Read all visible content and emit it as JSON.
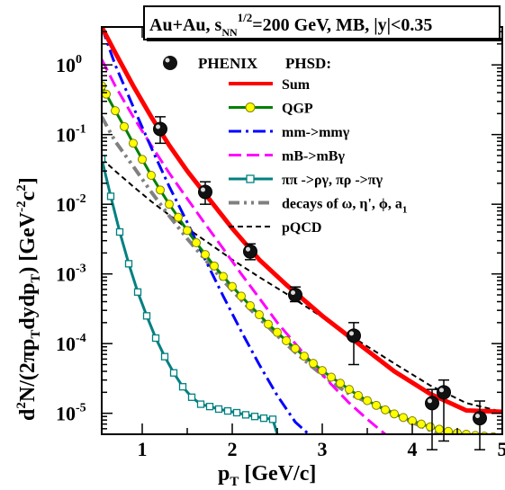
{
  "chart_data": {
    "type": "line",
    "title": "Au+Au, s_NN^1/2=200 GeV, MB, |y|<0.35",
    "title_parts": {
      "pre": "Au+Au, s",
      "sub1": "NN",
      "sup1": "1/2",
      "post": "=200 GeV, MB, |y|<0.35"
    },
    "xlabel": "p_T [GeV/c]",
    "xlabel_parts": {
      "main": "p",
      "sub": "T",
      "rest": " [GeV/c]"
    },
    "ylabel": "d^2N/(2πp_Tdydp_T) [GeV^-2 c^2]",
    "ylabel_parts": [
      {
        "t": "d",
        "k": "n"
      },
      {
        "t": "2",
        "k": "sup"
      },
      {
        "t": "N/(2πp",
        "k": "n"
      },
      {
        "t": "T",
        "k": "sub"
      },
      {
        "t": "dydp",
        "k": "n"
      },
      {
        "t": "T",
        "k": "sub"
      },
      {
        "t": ")  [GeV",
        "k": "n"
      },
      {
        "t": "-2",
        "k": "sup"
      },
      {
        "t": "c",
        "k": "n"
      },
      {
        "t": "2",
        "k": "sup"
      },
      {
        "t": "]",
        "k": "n"
      }
    ],
    "xlim": [
      0.55,
      5.0
    ],
    "ylim": [
      5e-06,
      3.5
    ],
    "yscale": "log",
    "xticks": [
      1,
      2,
      3,
      4,
      5
    ],
    "yticks": [
      {
        "v": 1,
        "label": "10",
        "exp": "0"
      },
      {
        "v": 0.1,
        "label": "10",
        "exp": "-1"
      },
      {
        "v": 0.01,
        "label": "10",
        "exp": "-2"
      },
      {
        "v": 0.001,
        "label": "10",
        "exp": "-3"
      },
      {
        "v": 0.0001,
        "label": "10",
        "exp": "-4"
      },
      {
        "v": 1e-05,
        "label": "10",
        "exp": "-5"
      }
    ],
    "legend_header": "PHSD:",
    "legend_placement": "top-right",
    "data_points": {
      "name": "PHENIX",
      "points": [
        {
          "x": 1.2,
          "y": 0.12,
          "ylo": 0.075,
          "yhi": 0.18
        },
        {
          "x": 1.7,
          "y": 0.015,
          "ylo": 0.01,
          "yhi": 0.021
        },
        {
          "x": 2.2,
          "y": 0.0021,
          "ylo": 0.0016,
          "yhi": 0.0027
        },
        {
          "x": 2.7,
          "y": 0.0005,
          "ylo": 0.0004,
          "yhi": 0.00065
        },
        {
          "x": 3.35,
          "y": 0.00013,
          "ylo": 5e-05,
          "yhi": 0.0002
        },
        {
          "x": 4.22,
          "y": 1.4e-05,
          "ylo": 3e-06,
          "yhi": 2.2e-05
        },
        {
          "x": 4.35,
          "y": 2e-05,
          "ylo": 4e-06,
          "yhi": 3e-05
        },
        {
          "x": 4.75,
          "y": 8.5e-06,
          "ylo": 3e-06,
          "yhi": 1.5e-05
        }
      ]
    },
    "series": [
      {
        "name": "Sum",
        "color": "#ff0000",
        "dash": "solid",
        "width": 5,
        "x": [
          0.55,
          0.7,
          0.9,
          1.1,
          1.3,
          1.5,
          1.7,
          2.0,
          2.3,
          2.6,
          3.0,
          3.4,
          3.8,
          4.2,
          4.6,
          5.0
        ],
        "y": [
          3.5,
          1.5,
          0.5,
          0.18,
          0.07,
          0.03,
          0.014,
          0.0045,
          0.0016,
          0.0007,
          0.00025,
          0.0001,
          4e-05,
          1.9e-05,
          1.1e-05,
          1.05e-05
        ]
      },
      {
        "name": "QGP",
        "color": "#008000",
        "dash": "solid",
        "width": 3,
        "marker": "circle-yellow",
        "x": [
          0.55,
          0.6,
          0.7,
          0.8,
          0.9,
          1.0,
          1.1,
          1.2,
          1.3,
          1.4,
          1.5,
          1.6,
          1.7,
          1.8,
          1.9,
          2.0,
          2.1,
          2.2,
          2.3,
          2.4,
          2.5,
          2.6,
          2.7,
          2.8,
          2.9,
          3.0,
          3.1,
          3.2,
          3.3,
          3.4,
          3.5,
          3.6,
          3.7,
          3.8,
          3.9,
          4.0,
          4.1,
          4.2,
          4.3,
          4.4,
          4.5,
          4.6,
          4.7,
          4.8,
          4.9,
          5.0
        ],
        "y": [
          0.5,
          0.38,
          0.22,
          0.13,
          0.075,
          0.044,
          0.026,
          0.016,
          0.01,
          0.0065,
          0.0042,
          0.0028,
          0.0019,
          0.0013,
          0.00092,
          0.00066,
          0.00048,
          0.00035,
          0.00026,
          0.00019,
          0.000145,
          0.00011,
          8.5e-05,
          6.6e-05,
          5.2e-05,
          4.1e-05,
          3.3e-05,
          2.7e-05,
          2.2e-05,
          1.8e-05,
          1.52e-05,
          1.3e-05,
          1.12e-05,
          9.8e-06,
          8.7e-06,
          7.8e-06,
          7e-06,
          6.4e-06,
          5.9e-06,
          5.5e-06,
          5.2e-06,
          5e-06,
          4.8e-06,
          4.7e-06,
          4.6e-06,
          4.5e-06
        ]
      },
      {
        "name": "mm->mmγ",
        "color": "#0000ff",
        "dash": "dashdot",
        "width": 3,
        "x": [
          0.55,
          0.7,
          0.9,
          1.1,
          1.3,
          1.5,
          1.7,
          1.9,
          2.1,
          2.3,
          2.5,
          2.7,
          2.85
        ],
        "y": [
          3.5,
          1.0,
          0.25,
          0.065,
          0.018,
          0.0055,
          0.0016,
          0.00048,
          0.00015,
          5e-05,
          1.8e-05,
          7.5e-06,
          5e-06
        ]
      },
      {
        "name": "mB->mBγ",
        "color": "#ff00ff",
        "dash": "dash",
        "width": 3,
        "x": [
          0.55,
          0.7,
          0.9,
          1.1,
          1.3,
          1.5,
          1.7,
          1.9,
          2.1,
          2.3,
          2.5,
          2.7,
          2.9,
          3.1,
          3.3,
          3.5,
          3.7
        ],
        "y": [
          1.2,
          0.5,
          0.18,
          0.07,
          0.028,
          0.012,
          0.0052,
          0.0023,
          0.001,
          0.00045,
          0.0002,
          0.0001,
          5e-05,
          2.6e-05,
          1.4e-05,
          8.2e-06,
          5e-06
        ]
      },
      {
        "name": "ππ ->ργ, πρ ->πγ",
        "color": "#008080",
        "dash": "solid",
        "width": 3,
        "marker": "square-open",
        "x": [
          0.55,
          0.65,
          0.75,
          0.85,
          0.95,
          1.05,
          1.15,
          1.25,
          1.35,
          1.45,
          1.55,
          1.65,
          1.75,
          1.85,
          1.95,
          2.05,
          2.15,
          2.25,
          2.35,
          2.45,
          2.5
        ],
        "y": [
          0.045,
          0.013,
          0.004,
          0.0014,
          0.00055,
          0.00025,
          0.00012,
          6.5e-05,
          3.8e-05,
          2.4e-05,
          1.7e-05,
          1.35e-05,
          1.25e-05,
          1.15e-05,
          1.08e-05,
          1.02e-05,
          9.5e-06,
          9e-06,
          8.5e-06,
          8.2e-06,
          5e-06
        ]
      },
      {
        "name": "decays of ω, η', ϕ, a1",
        "color": "#808080",
        "dash": "dashdotdot",
        "width": 4,
        "x": [
          0.55,
          0.7,
          0.9,
          1.1,
          1.3,
          1.5,
          1.7,
          1.9,
          2.1,
          2.3,
          2.5,
          2.7,
          2.9,
          3.1,
          3.3,
          3.5,
          3.7,
          3.9,
          4.1,
          4.3
        ],
        "y": [
          0.18,
          0.08,
          0.035,
          0.015,
          0.0068,
          0.0032,
          0.0016,
          0.0008,
          0.00042,
          0.00023,
          0.00013,
          7.5e-05,
          4.5e-05,
          2.8e-05,
          1.9e-05,
          1.45e-05,
          1.15e-05,
          8.5e-06,
          6.5e-06,
          5e-06
        ]
      },
      {
        "name": "pQCD",
        "color": "#000000",
        "dash": "shortdash",
        "width": 2,
        "x": [
          0.55,
          0.7,
          0.9,
          1.1,
          1.3,
          1.5,
          1.7,
          2.0,
          2.3,
          2.6,
          3.0,
          3.4,
          3.8,
          4.2,
          4.6,
          5.0
        ],
        "y": [
          0.045,
          0.03,
          0.018,
          0.011,
          0.007,
          0.0045,
          0.003,
          0.0016,
          0.0009,
          0.00052,
          0.00024,
          0.00011,
          5.2e-05,
          2.5e-05,
          1.4e-05,
          1.05e-05
        ]
      }
    ]
  }
}
